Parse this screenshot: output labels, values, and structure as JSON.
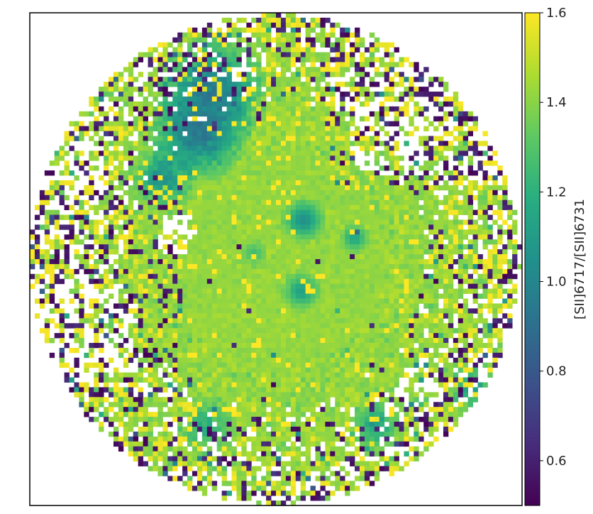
{
  "chart_data": {
    "type": "heatmap",
    "title": "",
    "xlabel": "",
    "ylabel": "",
    "colormap": "viridis",
    "colorbar": {
      "label": "[SII]6717/[SII]6731",
      "vmin": 0.5,
      "vmax": 1.6,
      "ticks": [
        0.6,
        0.8,
        1.0,
        1.2,
        1.4,
        1.6
      ],
      "tick_labels": [
        "0.6",
        "0.8",
        "1.0",
        "1.2",
        "1.4",
        "1.6"
      ]
    },
    "grid": false,
    "field_shape": "circular",
    "map_pixels": 100,
    "typical_value": 1.42,
    "features": [
      {
        "name": "north-west low-ratio region",
        "value": 0.95
      },
      {
        "name": "central low-ratio knot",
        "value": 1.05
      },
      {
        "name": "secondary knot east",
        "value": 1.15
      },
      {
        "name": "southern knot",
        "value": 1.12
      },
      {
        "name": "noisy outer ring",
        "value_range": [
          0.5,
          1.6
        ]
      }
    ]
  }
}
